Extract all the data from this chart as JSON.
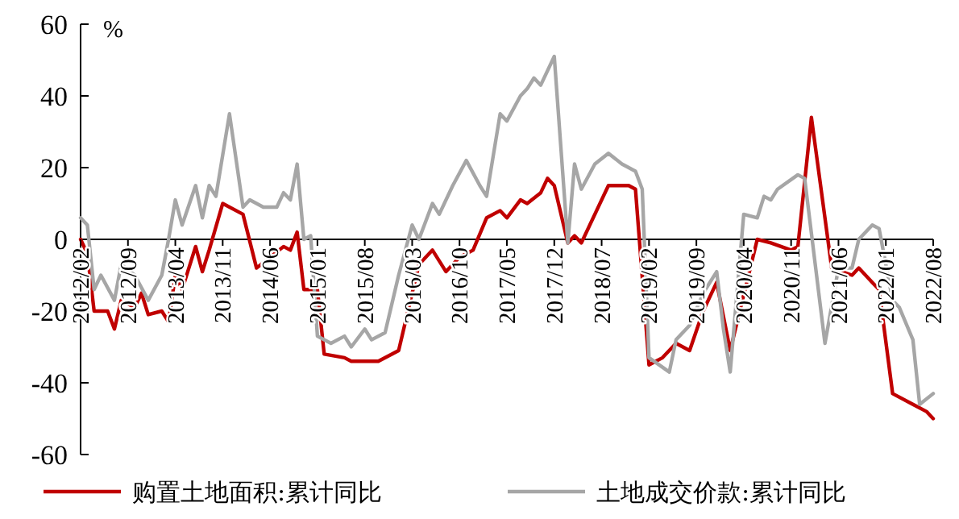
{
  "chart_data": {
    "type": "line",
    "ylabel": "%",
    "legend": "bottom",
    "line_style": "solid",
    "marker": "none",
    "grid": false,
    "xlim": [
      "2012-02",
      "2022-08"
    ],
    "xticks": [
      {
        "value": "2012-02",
        "label": "2012/02"
      },
      {
        "value": "2012-09",
        "label": "2012/09"
      },
      {
        "value": "2013-04",
        "label": "2013/04"
      },
      {
        "value": "2013-11",
        "label": "2013/11"
      },
      {
        "value": "2014-06",
        "label": "2014/06"
      },
      {
        "value": "2015-01",
        "label": "2015/01"
      },
      {
        "value": "2015-08",
        "label": "2015/08"
      },
      {
        "value": "2016-03",
        "label": "2016/03"
      },
      {
        "value": "2016-10",
        "label": "2016/10"
      },
      {
        "value": "2017-05",
        "label": "2017/05"
      },
      {
        "value": "2017-12",
        "label": "2017/12"
      },
      {
        "value": "2018-07",
        "label": "2018/07"
      },
      {
        "value": "2019-02",
        "label": "2019/02"
      },
      {
        "value": "2019-09",
        "label": "2019/09"
      },
      {
        "value": "2020-04",
        "label": "2020/04"
      },
      {
        "value": "2020-11",
        "label": "2020/11"
      },
      {
        "value": "2021-06",
        "label": "2021/06"
      },
      {
        "value": "2022-01",
        "label": "2022/01"
      },
      {
        "value": "2022-08",
        "label": "2022/08"
      }
    ],
    "ylim": [
      -60,
      60
    ],
    "yticks": [
      -60,
      -40,
      -20,
      0,
      20,
      40,
      60
    ],
    "series": [
      {
        "name": "购置土地面积:累计同比",
        "color": "#c00000",
        "x": [
          "2012-02",
          "2012-03",
          "2012-04",
          "2012-06",
          "2012-07",
          "2012-08",
          "2012-10",
          "2012-11",
          "2012-12",
          "2013-02",
          "2013-03",
          "2013-04",
          "2013-05",
          "2013-07",
          "2013-08",
          "2013-09",
          "2013-11",
          "2014-02",
          "2014-04",
          "2014-06",
          "2014-08",
          "2014-09",
          "2014-10",
          "2014-11",
          "2015-01",
          "2015-02",
          "2015-05",
          "2015-06",
          "2015-10",
          "2016-01",
          "2016-04",
          "2016-06",
          "2016-08",
          "2016-10",
          "2016-12",
          "2017-02",
          "2017-04",
          "2017-05",
          "2017-07",
          "2017-08",
          "2017-10",
          "2017-11",
          "2017-12",
          "2018-02",
          "2018-03",
          "2018-04",
          "2018-08",
          "2018-11",
          "2018-12",
          "2019-02",
          "2019-04",
          "2019-06",
          "2019-08",
          "2019-10",
          "2019-12",
          "2020-02",
          "2020-06",
          "2020-08",
          "2020-11",
          "2020-12",
          "2021-02",
          "2021-05",
          "2021-08",
          "2021-09",
          "2021-11",
          "2021-12",
          "2022-02",
          "2022-05",
          "2022-07",
          "2022-08"
        ],
        "values": [
          0,
          -4,
          -20,
          -20,
          -25,
          -17,
          -19,
          -15,
          -21,
          -20,
          -23,
          -10,
          -14,
          -2,
          -9,
          -3,
          10,
          7,
          -8,
          -5,
          -2,
          -3,
          2,
          -14,
          -14,
          -32,
          -33,
          -34,
          -34,
          -31,
          -7,
          -3,
          -9,
          -5,
          -3,
          6,
          8,
          6,
          11,
          10,
          13,
          17,
          15,
          -1,
          1,
          -1,
          15,
          15,
          14,
          -35,
          -33,
          -29,
          -31,
          -20,
          -12,
          -31,
          0,
          -1,
          -3,
          -2,
          34,
          -8,
          -10,
          -8,
          -12,
          -14,
          -43,
          -46,
          -48,
          -50
        ]
      },
      {
        "name": "土地成交价款:累计同比",
        "color": "#a6a6a6",
        "x": [
          "2012-02",
          "2012-03",
          "2012-04",
          "2012-05",
          "2012-07",
          "2012-08",
          "2012-10",
          "2012-12",
          "2013-02",
          "2013-03",
          "2013-04",
          "2013-05",
          "2013-07",
          "2013-08",
          "2013-09",
          "2013-10",
          "2013-12",
          "2014-02",
          "2014-03",
          "2014-05",
          "2014-07",
          "2014-08",
          "2014-09",
          "2014-10",
          "2014-11",
          "2014-12",
          "2015-01",
          "2015-03",
          "2015-05",
          "2015-06",
          "2015-08",
          "2015-09",
          "2015-11",
          "2016-01",
          "2016-03",
          "2016-04",
          "2016-06",
          "2016-07",
          "2016-09",
          "2016-11",
          "2017-01",
          "2017-02",
          "2017-04",
          "2017-05",
          "2017-07",
          "2017-08",
          "2017-09",
          "2017-10",
          "2017-12",
          "2018-02",
          "2018-03",
          "2018-04",
          "2018-06",
          "2018-08",
          "2018-10",
          "2018-12",
          "2019-01",
          "2019-02",
          "2019-05",
          "2019-06",
          "2019-08",
          "2019-10",
          "2019-12",
          "2020-01",
          "2020-02",
          "2020-04",
          "2020-06",
          "2020-07",
          "2020-08",
          "2020-09",
          "2020-12",
          "2021-01",
          "2021-04",
          "2021-06",
          "2021-08",
          "2021-09",
          "2021-11",
          "2021-12",
          "2022-02",
          "2022-03",
          "2022-05",
          "2022-06",
          "2022-08"
        ],
        "values": [
          6,
          4,
          -14,
          -10,
          -17,
          -7,
          -10,
          -17,
          -10,
          0,
          11,
          4,
          15,
          6,
          15,
          12,
          35,
          9,
          11,
          9,
          9,
          13,
          11,
          21,
          0,
          1,
          -27,
          -29,
          -27,
          -30,
          -25,
          -28,
          -26,
          -10,
          4,
          0,
          10,
          7,
          15,
          22,
          15,
          12,
          35,
          33,
          40,
          42,
          45,
          43,
          51,
          -1,
          21,
          14,
          21,
          24,
          21,
          19,
          14,
          -33,
          -37,
          -28,
          -24,
          -15,
          -9,
          -25,
          -37,
          7,
          6,
          12,
          11,
          14,
          18,
          17,
          -29,
          -8,
          -8,
          0,
          4,
          3,
          -17,
          -19,
          -28,
          -46,
          -43
        ]
      }
    ]
  }
}
